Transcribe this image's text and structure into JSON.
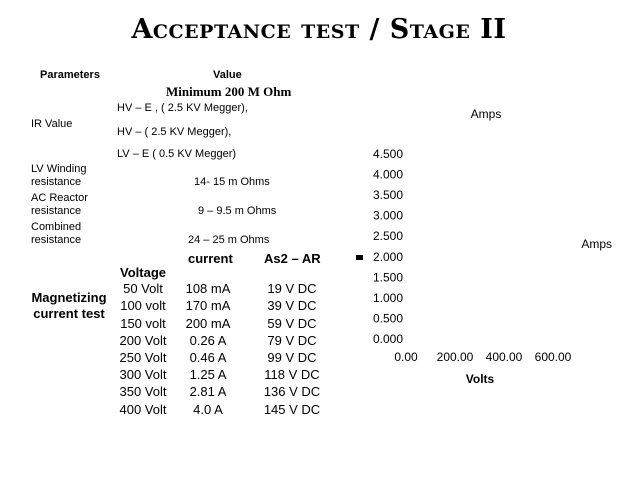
{
  "slide": {
    "title": "Acceptance test / Stage II"
  },
  "params_table": {
    "header_parameters": "Parameters",
    "header_value": "Value",
    "min_value": "Minimum 200 M Ohm",
    "ir_label": "IR Value",
    "ir_lines": [
      "HV – E , ( 2.5 KV Megger),",
      "HV – ( 2.5 KV Megger),",
      "LV – E ( 0.5 KV Megger)"
    ],
    "lv_winding_label_1": "LV Winding",
    "lv_winding_label_2": "resistance",
    "lv_winding_value": "14- 15 m Ohms",
    "ac_reactor_label_1": "AC Reactor",
    "ac_reactor_label_2": "resistance",
    "ac_reactor_value": "9 – 9.5 m Ohms",
    "combined_label_1": "Combined",
    "combined_label_2": "resistance",
    "combined_value": "24 – 25 m Ohms"
  },
  "magnetizing": {
    "label": "Magnetizing current test",
    "col_voltage": "Voltage",
    "col_current": "current",
    "col_as2": "As2 – AR",
    "rows": [
      {
        "voltage": "50 Volt",
        "current": "108 mA",
        "as2": "19 V DC"
      },
      {
        "voltage": "100 volt",
        "current": "170 mA",
        "as2": "39 V DC"
      },
      {
        "voltage": "150 volt",
        "current": "200 mA",
        "as2": "59 V DC"
      },
      {
        "voltage": "200 Volt",
        "current": "0.26 A",
        "as2": "79 V DC"
      },
      {
        "voltage": "250 Volt",
        "current": "0.46 A",
        "as2": "99 V DC"
      },
      {
        "voltage": "300 Volt",
        "current": "1.25 A",
        "as2": "118 V DC"
      },
      {
        "voltage": "350 Volt",
        "current": "2.81 A",
        "as2": "136 V DC"
      },
      {
        "voltage": "400 Volt",
        "current": "4.0 A",
        "as2": "145 V DC"
      }
    ]
  },
  "chart_data": {
    "type": "scatter",
    "title": "Amps",
    "xlabel": "Volts",
    "ylabel": "",
    "legend": [
      "Amps"
    ],
    "legend_position": "right",
    "xlim": [
      0,
      600
    ],
    "ylim": [
      0,
      4.5
    ],
    "x_ticks": [
      "0.00",
      "200.00",
      "400.00",
      "600.00"
    ],
    "y_ticks": [
      "0.000",
      "0.500",
      "1.000",
      "1.500",
      "2.000",
      "2.500",
      "3.000",
      "3.500",
      "4.000",
      "4.500"
    ],
    "grid": false,
    "series": [
      {
        "name": "Amps",
        "color": "#000000",
        "points": []
      }
    ]
  }
}
